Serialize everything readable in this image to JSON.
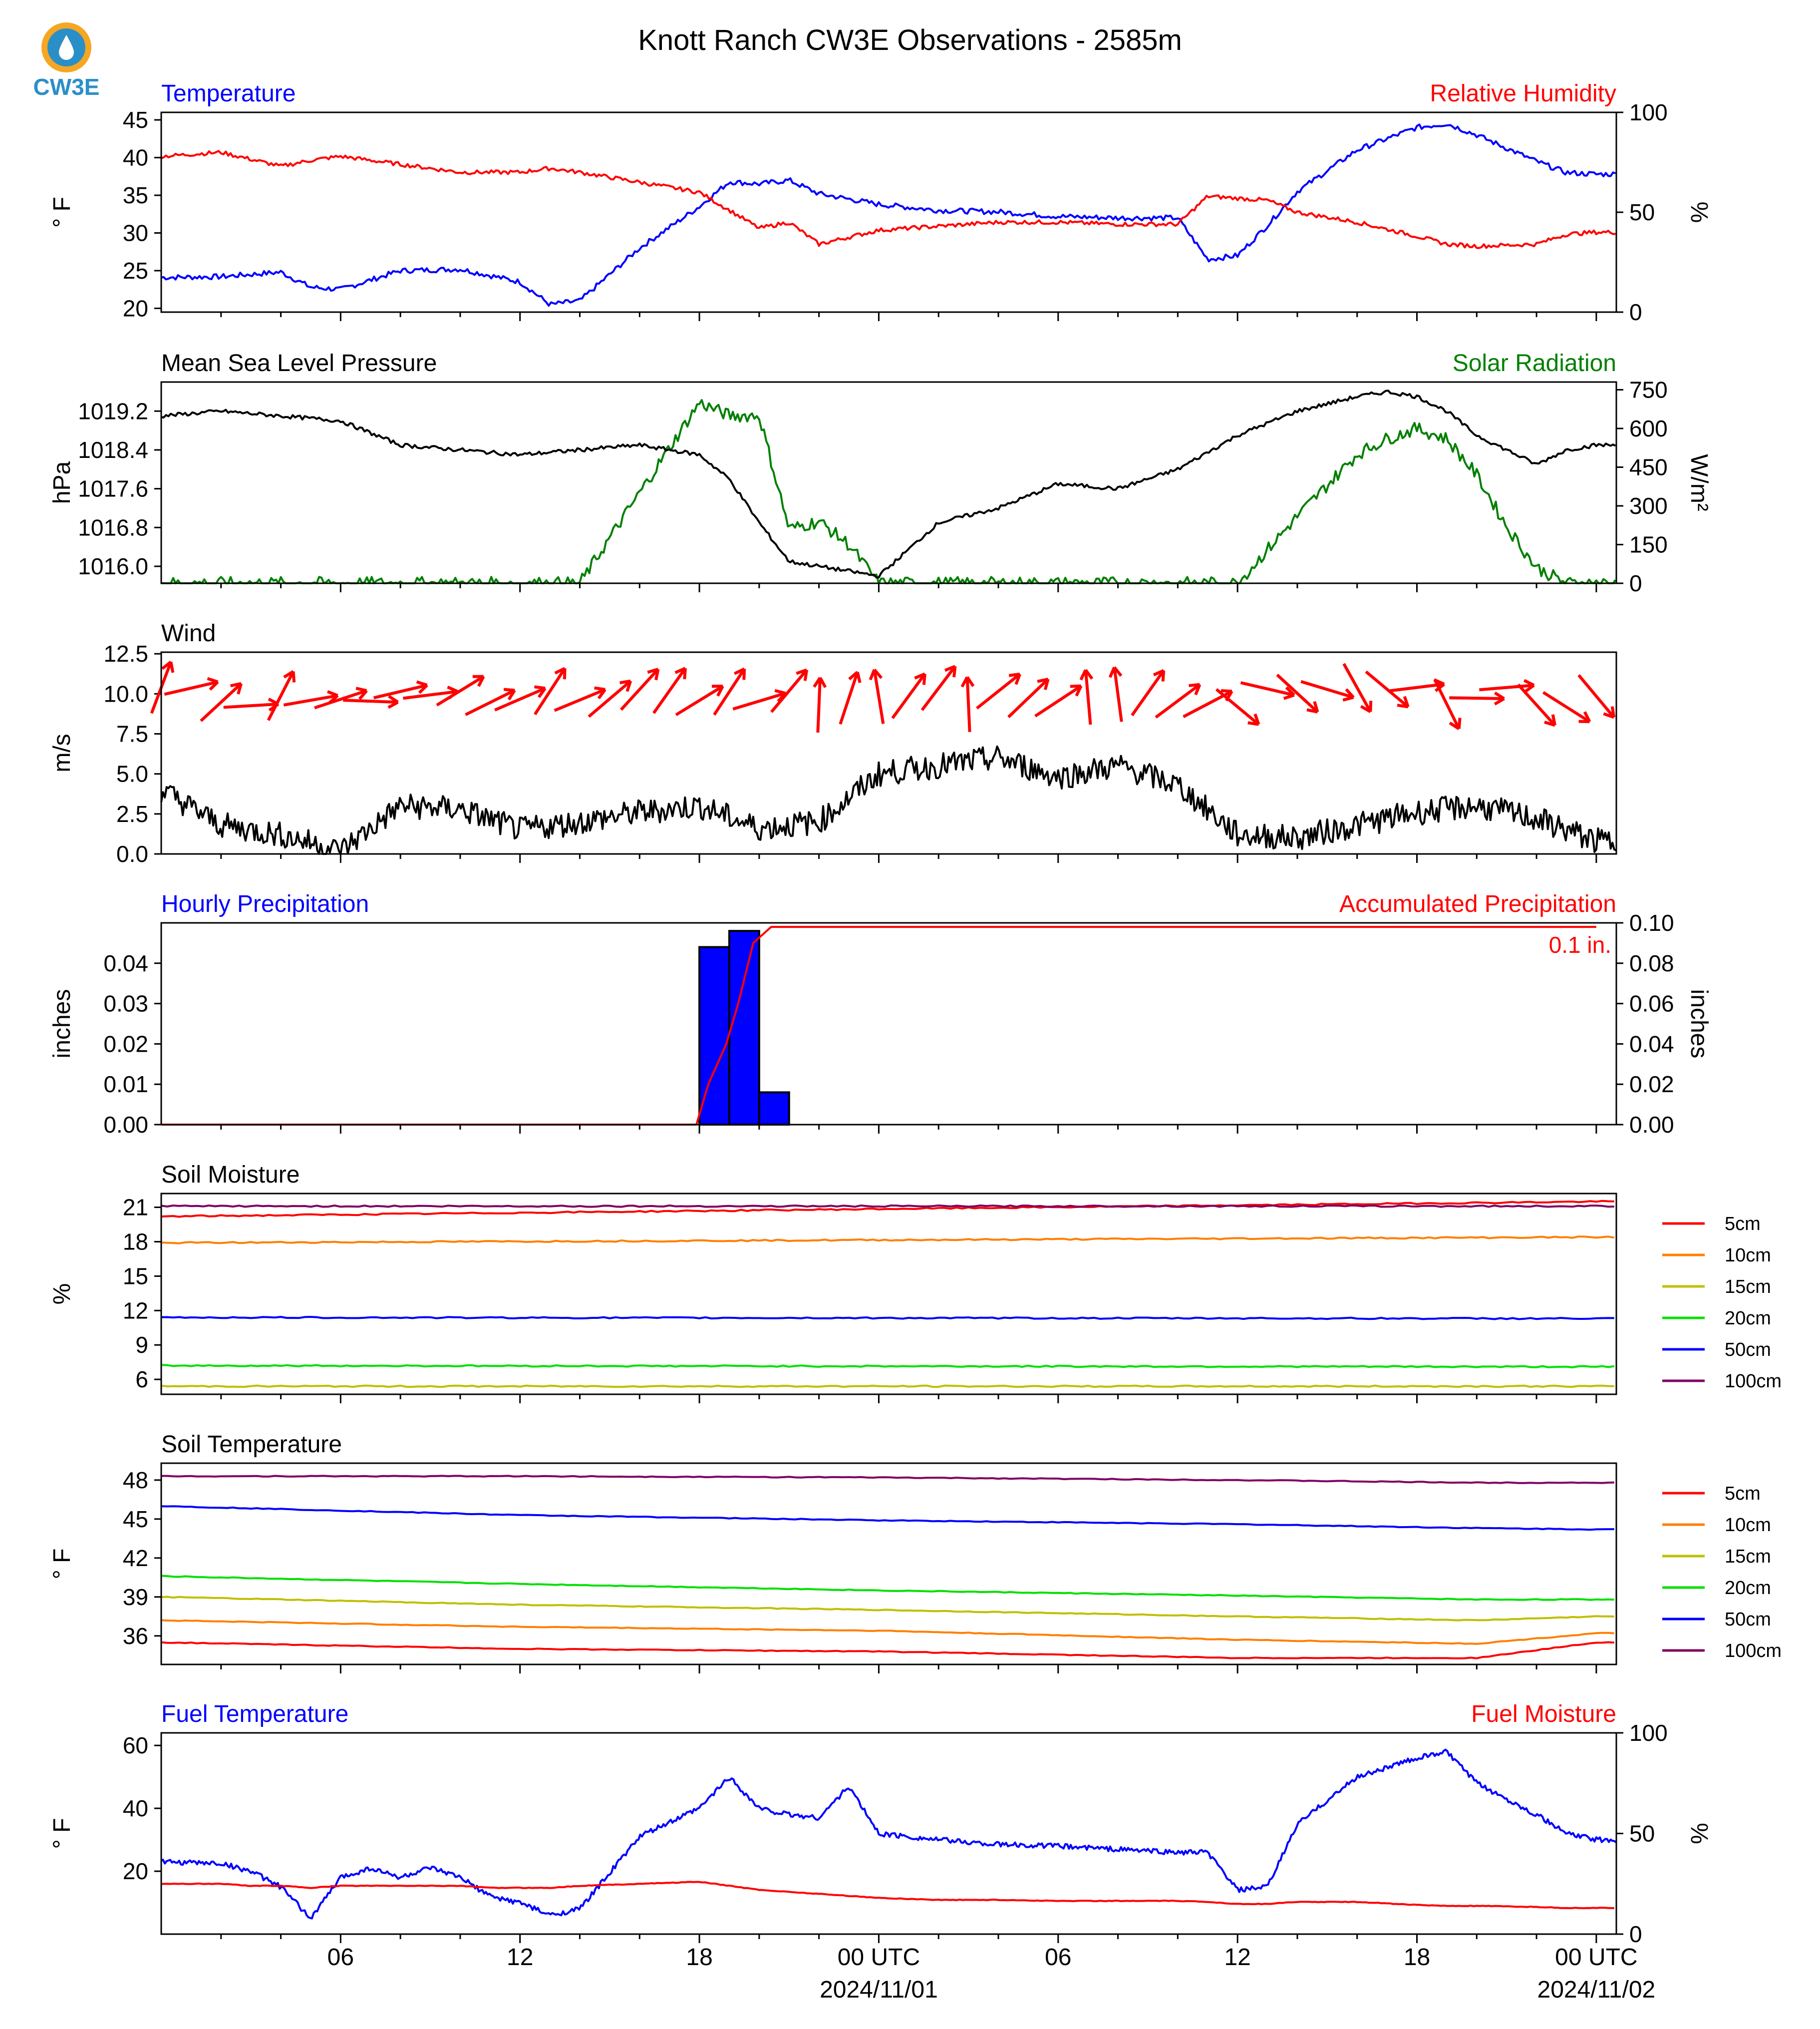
{
  "title": "Knott Ranch CW3E Observations - 2585m",
  "logo": {
    "text": "CW3E",
    "color": "#2a8fc7",
    "accent": "#f5a623"
  },
  "x_axis": {
    "start": "2024-10-31T00:00Z",
    "end": "2024-11-02T00:40Z",
    "tick_hours": [
      6,
      12,
      18,
      24,
      30,
      36,
      42,
      48
    ],
    "tick_labels": [
      "06",
      "12",
      "18",
      "00 UTC",
      "06",
      "12",
      "18",
      "00 UTC"
    ],
    "date_labels": [
      {
        "hour": 24,
        "text": "2024/11/01"
      },
      {
        "hour": 48,
        "text": "2024/11/02"
      }
    ]
  },
  "colors": {
    "temperature": "#0000ff",
    "humidity": "#ff0000",
    "pressure": "#000000",
    "solar": "#008000",
    "wind": "#000000",
    "wind_barb": "#ff0000",
    "precip_bar": "#0000ff",
    "precip_accum": "#ff0000"
  },
  "panels": {
    "temp": {
      "left_title": "Temperature",
      "right_title": "Relative Humidity",
      "left_ylabel": "° F",
      "right_ylabel": "%",
      "left_ticks": [
        "20",
        "25",
        "30",
        "35",
        "40",
        "45"
      ],
      "right_ticks": [
        "0",
        "50",
        "100"
      ]
    },
    "pres": {
      "left_title": "Mean Sea Level Pressure",
      "right_title": "Solar Radiation",
      "left_ylabel": "hPa",
      "right_ylabel": "W/m²",
      "left_ticks": [
        "1016.0",
        "1016.8",
        "1017.6",
        "1018.4",
        "1019.2"
      ],
      "right_ticks": [
        "0",
        "150",
        "300",
        "450",
        "600",
        "750"
      ]
    },
    "wind": {
      "left_title": "Wind",
      "left_ylabel": "m/s",
      "left_ticks": [
        "0.0",
        "2.5",
        "5.0",
        "7.5",
        "10.0",
        "12.5"
      ]
    },
    "precip": {
      "left_title": "Hourly Precipitation",
      "right_title": "Accumulated Precipitation",
      "left_ylabel": "inches",
      "right_ylabel": "inches",
      "left_ticks": [
        "0.00",
        "0.01",
        "0.02",
        "0.03",
        "0.04"
      ],
      "right_ticks": [
        "0.00",
        "0.02",
        "0.04",
        "0.06",
        "0.08",
        "0.10"
      ],
      "annotation": "0.1 in."
    },
    "soilm": {
      "left_title": "Soil Moisture",
      "left_ylabel": "%",
      "left_ticks": [
        "6",
        "9",
        "12",
        "15",
        "18",
        "21"
      ],
      "legend": [
        "5cm",
        "10cm",
        "15cm",
        "20cm",
        "50cm",
        "100cm"
      ]
    },
    "soilt": {
      "left_title": "Soil Temperature",
      "left_ylabel": "° F",
      "left_ticks": [
        "36",
        "39",
        "42",
        "45",
        "48"
      ],
      "legend": [
        "5cm",
        "10cm",
        "15cm",
        "20cm",
        "50cm",
        "100cm"
      ]
    },
    "fuel": {
      "left_title": "Fuel Temperature",
      "right_title": "Fuel Moisture",
      "left_ylabel": "° F",
      "right_ylabel": "%",
      "left_ticks": [
        "20",
        "40",
        "60"
      ],
      "right_ticks": [
        "0",
        "50",
        "100"
      ]
    }
  },
  "chart_data": [
    {
      "type": "line",
      "title": "Temperature / Relative Humidity",
      "x": [
        0,
        2,
        4,
        5,
        6,
        8,
        10,
        12,
        13,
        14,
        16,
        18,
        19,
        20,
        21,
        22,
        24,
        26,
        28,
        30,
        32,
        34,
        35,
        36,
        37,
        38,
        40,
        42,
        43,
        44,
        46,
        47,
        48
      ],
      "series": [
        {
          "name": "Temperature",
          "axis": "left",
          "unit": "°F",
          "values": [
            24.1,
            24.2,
            24.8,
            22.8,
            22.5,
            25.0,
            25.2,
            23.5,
            20.5,
            21.0,
            28.0,
            33.5,
            36.8,
            36.5,
            37.0,
            35.2,
            33.8,
            33.0,
            32.8,
            32.2,
            32.0,
            32.0,
            26.5,
            27.0,
            31.0,
            35.5,
            41.0,
            44.0,
            44.5,
            43.0,
            39.5,
            38.0,
            37.8
          ]
        },
        {
          "name": "Relative Humidity",
          "axis": "right",
          "unit": "%",
          "values": [
            78,
            80,
            73,
            76,
            78,
            74,
            70,
            70,
            72,
            70,
            65,
            60,
            51,
            42,
            45,
            34,
            41,
            43,
            45,
            45,
            44,
            44,
            58,
            57,
            56,
            50,
            45,
            38,
            34,
            33,
            34,
            39,
            40
          ]
        }
      ],
      "ylim_left": [
        19.5,
        46
      ],
      "ylim_right": [
        0,
        100
      ]
    },
    {
      "type": "line",
      "title": "Mean Sea Level Pressure / Solar Radiation",
      "x": [
        0,
        2,
        4,
        6,
        8,
        10,
        12,
        14,
        16,
        18,
        19,
        20,
        21,
        22,
        23,
        24,
        26,
        28,
        30,
        32,
        34,
        36,
        38,
        40,
        41,
        42,
        43,
        44,
        45,
        46,
        47,
        48
      ],
      "series": [
        {
          "name": "Mean Sea Level Pressure",
          "axis": "left",
          "unit": "hPa",
          "values": [
            1019.1,
            1019.2,
            1019.1,
            1019.0,
            1018.5,
            1018.4,
            1018.3,
            1018.4,
            1018.5,
            1018.3,
            1017.8,
            1016.9,
            1016.1,
            1016.0,
            1015.9,
            1015.8,
            1016.9,
            1017.2,
            1017.7,
            1017.6,
            1018.0,
            1018.7,
            1019.2,
            1019.5,
            1019.6,
            1019.5,
            1019.2,
            1018.7,
            1018.4,
            1018.1,
            1018.4,
            1018.5
          ]
        },
        {
          "name": "Solar Radiation",
          "axis": "right",
          "unit": "W/m²",
          "values": [
            0,
            0,
            0,
            0,
            0,
            0,
            0,
            0,
            350,
            700,
            650,
            650,
            210,
            240,
            150,
            0,
            0,
            0,
            0,
            0,
            0,
            0,
            260,
            500,
            560,
            600,
            560,
            420,
            220,
            60,
            0,
            0
          ]
        }
      ],
      "ylim_left": [
        1015.65,
        1019.8
      ],
      "ylim_right": [
        0,
        780
      ]
    },
    {
      "type": "line",
      "title": "Wind",
      "x": [
        0,
        2,
        4,
        6,
        8,
        10,
        12,
        14,
        16,
        18,
        20,
        22,
        24,
        26,
        28,
        30,
        32,
        34,
        36,
        38,
        40,
        42,
        44,
        46,
        48
      ],
      "series": [
        {
          "name": "Wind Speed",
          "axis": "left",
          "unit": "m/s",
          "values": [
            4.0,
            1.8,
            1.2,
            0.2,
            3.0,
            2.8,
            1.5,
            2.0,
            2.6,
            3.0,
            1.6,
            2.0,
            5.0,
            5.5,
            6.0,
            4.8,
            5.5,
            4.3,
            1.2,
            1.0,
            1.8,
            2.6,
            3.0,
            2.2,
            0.8
          ]
        }
      ],
      "ylim_left": [
        0,
        12.6
      ]
    },
    {
      "type": "bar",
      "title": "Hourly Precipitation",
      "categories": [
        "18",
        "19",
        "20"
      ],
      "values": [
        0.044,
        0.048,
        0.008
      ],
      "unit": "inches",
      "accumulated": {
        "x": [
          0,
          17.9,
          18.3,
          18.9,
          19.3,
          19.8,
          20.4,
          48
        ],
        "values": [
          0,
          0.0,
          0.02,
          0.04,
          0.06,
          0.09,
          0.098,
          0.098
        ]
      },
      "annotation": "0.1 in.",
      "ylim_left": [
        0,
        0.05
      ],
      "ylim_right": [
        0,
        0.1
      ]
    },
    {
      "type": "line",
      "title": "Soil Moisture",
      "x": [
        0,
        48
      ],
      "series": [
        {
          "name": "5cm",
          "values": [
            20.2,
            21.5
          ]
        },
        {
          "name": "10cm",
          "values": [
            17.9,
            18.4
          ]
        },
        {
          "name": "15cm",
          "values": [
            5.4,
            5.4
          ]
        },
        {
          "name": "20cm",
          "values": [
            7.2,
            7.1
          ]
        },
        {
          "name": "50cm",
          "values": [
            11.4,
            11.3
          ]
        },
        {
          "name": "100cm",
          "values": [
            21.1,
            21.1
          ]
        }
      ],
      "ylim_left": [
        4.7,
        22.2
      ]
    },
    {
      "type": "line",
      "title": "Soil Temperature",
      "x": [
        0,
        12,
        24,
        36,
        44,
        48
      ],
      "series": [
        {
          "name": "5cm",
          "values": [
            35.5,
            35.0,
            34.8,
            34.3,
            34.3,
            35.5
          ]
        },
        {
          "name": "10cm",
          "values": [
            37.2,
            36.7,
            36.4,
            35.7,
            35.4,
            36.2
          ]
        },
        {
          "name": "15cm",
          "values": [
            39.0,
            38.4,
            38.0,
            37.5,
            37.2,
            37.5
          ]
        },
        {
          "name": "20cm",
          "values": [
            40.6,
            40.0,
            39.5,
            39.1,
            38.8,
            38.8
          ]
        },
        {
          "name": "50cm",
          "values": [
            46.0,
            45.3,
            44.9,
            44.6,
            44.3,
            44.2
          ]
        },
        {
          "name": "100cm",
          "values": [
            48.3,
            48.3,
            48.2,
            48.0,
            47.8,
            47.8
          ]
        }
      ],
      "ylim_left": [
        33.8,
        49.3
      ]
    },
    {
      "type": "line",
      "title": "Fuel Temperature / Fuel Moisture",
      "x": [
        0,
        2,
        3,
        4,
        5,
        6,
        7,
        8,
        9,
        10,
        11,
        12,
        13,
        14,
        16,
        18,
        19,
        20,
        21,
        22,
        23,
        24,
        26,
        28,
        30,
        32,
        34,
        35,
        36,
        37,
        38,
        40,
        42,
        43,
        44,
        46,
        47,
        48
      ],
      "series": [
        {
          "name": "Fuel Temperature",
          "axis": "left",
          "unit": "°F",
          "values": [
            23,
            22.5,
            20,
            15,
            5,
            18,
            21,
            18,
            21,
            18,
            12,
            10,
            6,
            8,
            31,
            40,
            50,
            40,
            38,
            37,
            47,
            32,
            30,
            28.5,
            28,
            27,
            26,
            26,
            14,
            15,
            35,
            50,
            56,
            58,
            48,
            38,
            32,
            30
          ]
        },
        {
          "name": "Fuel Moisture",
          "axis": "right",
          "unit": "%",
          "values": [
            25,
            25,
            24,
            24,
            23,
            24,
            24,
            24,
            24,
            24,
            23,
            23,
            23,
            24,
            25,
            26,
            24,
            22,
            21,
            20,
            19,
            18,
            17,
            17,
            16.5,
            16.5,
            16.5,
            16,
            15,
            15,
            16,
            16,
            14.5,
            14,
            14,
            13.5,
            13,
            13
          ]
        }
      ],
      "ylim_left": [
        0,
        64
      ],
      "ylim_right": [
        0,
        100
      ]
    }
  ]
}
